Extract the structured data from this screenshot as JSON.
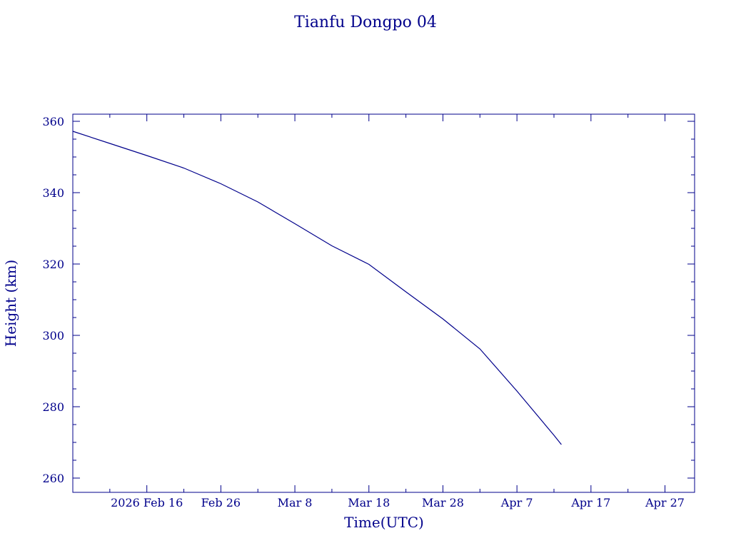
{
  "chart_data": {
    "type": "line",
    "title": "Tianfu Dongpo 04",
    "xlabel": "Time(UTC)",
    "ylabel": "Height (km)",
    "ylim": [
      256,
      362
    ],
    "xlim": [
      "2026-02-06",
      "2026-05-01"
    ],
    "grid": false,
    "x_ticks": [
      {
        "date": "2026-02-16",
        "label": "2026 Feb 16"
      },
      {
        "date": "2026-02-26",
        "label": "Feb 26"
      },
      {
        "date": "2026-03-08",
        "label": "Mar  8"
      },
      {
        "date": "2026-03-18",
        "label": "Mar 18"
      },
      {
        "date": "2026-03-28",
        "label": "Mar 28"
      },
      {
        "date": "2026-04-07",
        "label": "Apr  7"
      },
      {
        "date": "2026-04-17",
        "label": "Apr 17"
      },
      {
        "date": "2026-04-27",
        "label": "Apr 27"
      }
    ],
    "y_ticks": [
      260,
      280,
      300,
      320,
      340,
      360
    ],
    "series": [
      {
        "color": "#00008b",
        "points": [
          [
            "2026-02-06",
            357.2
          ],
          [
            "2026-02-11",
            353.8
          ],
          [
            "2026-02-16",
            350.4
          ],
          [
            "2026-02-21",
            346.9
          ],
          [
            "2026-02-26",
            342.5
          ],
          [
            "2026-03-03",
            337.4
          ],
          [
            "2026-03-08",
            331.3
          ],
          [
            "2026-03-13",
            325.1
          ],
          [
            "2026-03-18",
            319.9
          ],
          [
            "2026-03-23",
            312.2
          ],
          [
            "2026-03-28",
            304.6
          ],
          [
            "2026-04-02",
            296.2
          ],
          [
            "2026-04-07",
            284.4
          ],
          [
            "2026-04-12",
            272.0
          ],
          [
            "2026-04-13",
            269.4
          ]
        ]
      }
    ]
  }
}
